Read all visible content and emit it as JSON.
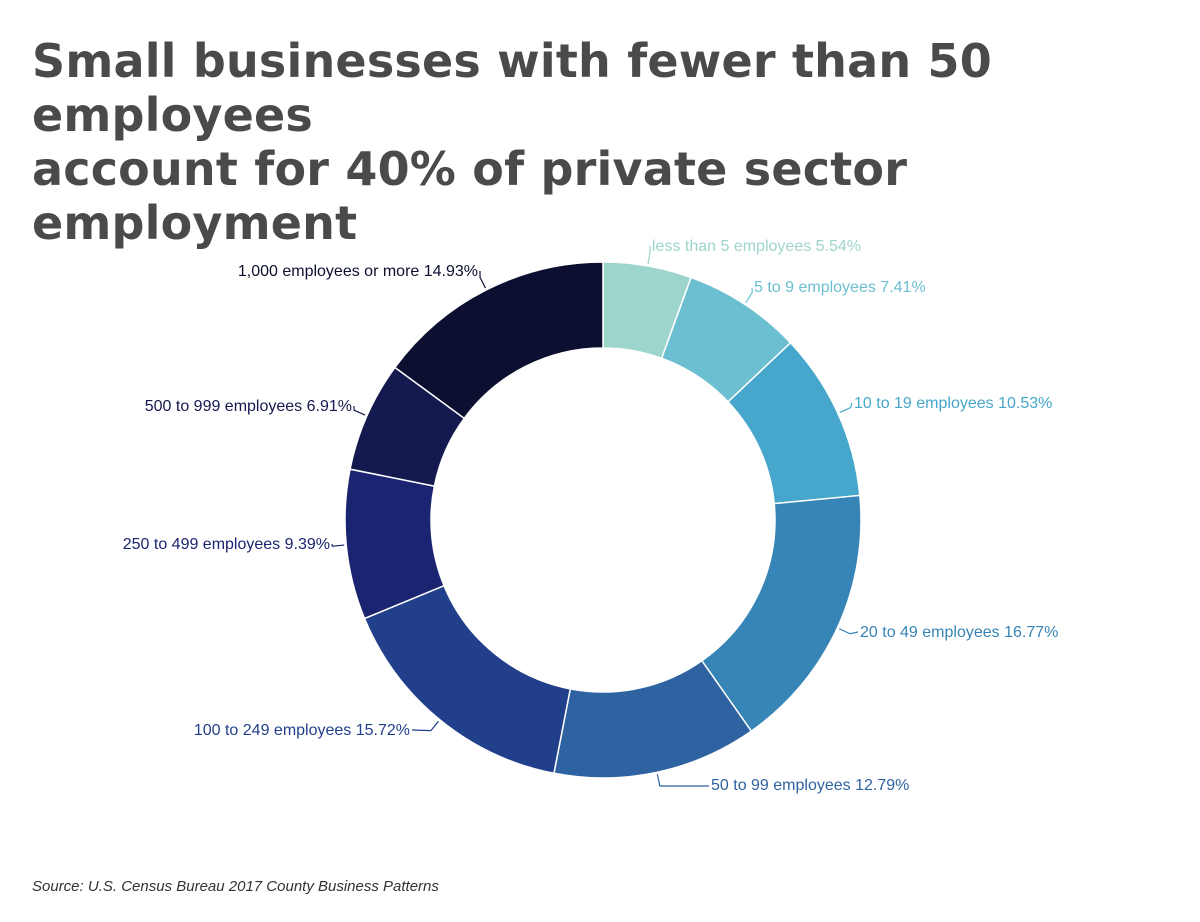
{
  "title_lines": [
    "Small businesses with fewer than 50 employees",
    "account for 40% of private sector employment"
  ],
  "source": "Source: U.S. Census Bureau 2017 County Business Patterns",
  "chart_data": {
    "type": "pie",
    "style": "donut",
    "title": "Small businesses with fewer than 50 employees account for 40% of private sector employment",
    "categories": [
      "less than 5 employees",
      "5 to 9 employees",
      "10 to 19 employees",
      "20 to 49 employees",
      "50 to 99 employees",
      "100 to 249 employees",
      "250 to 499 employees",
      "500 to 999 employees",
      "1,000 employees or more"
    ],
    "values": [
      5.54,
      7.41,
      10.53,
      16.77,
      12.79,
      15.72,
      9.39,
      6.91,
      14.93
    ],
    "labels": [
      "less than 5 employees 5.54%",
      "5 to 9 employees 7.41%",
      "10 to 19 employees 10.53%",
      "20 to 49 employees 16.77%",
      "50 to 99 employees 12.79%",
      "100 to 249 employees 15.72%",
      "250 to 499 employees 9.39%",
      "500 to 999 employees 6.91%",
      "1,000 employees or more 14.93%"
    ],
    "colors": [
      "#9dd5cc",
      "#6bbfd1",
      "#46a6cb",
      "#3784b7",
      "#2e62a1",
      "#223f8b",
      "#1b2470",
      "#14194f",
      "#0c0f30"
    ],
    "start": "top, clockwise",
    "legend": "none"
  }
}
